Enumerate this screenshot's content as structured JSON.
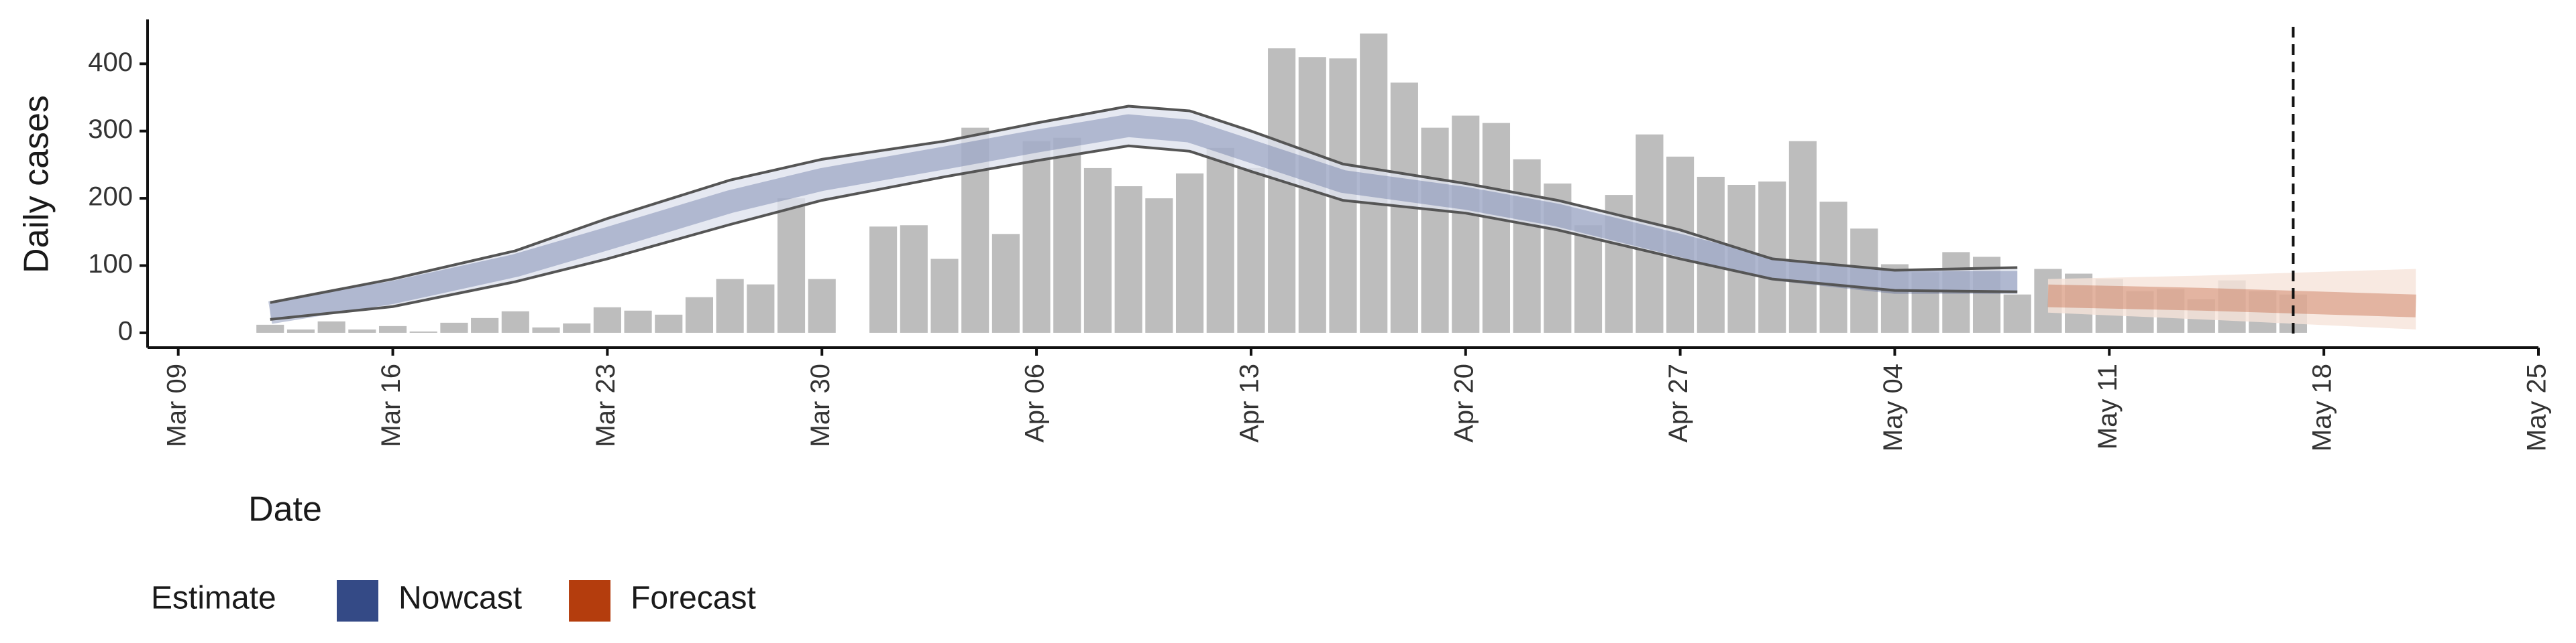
{
  "chart_data": {
    "type": "bar",
    "x_label": "Date",
    "y_label": "Daily cases",
    "x": [
      "Mar 12",
      "Mar 13",
      "Mar 14",
      "Mar 15",
      "Mar 16",
      "Mar 17",
      "Mar 18",
      "Mar 19",
      "Mar 20",
      "Mar 21",
      "Mar 22",
      "Mar 23",
      "Mar 24",
      "Mar 25",
      "Mar 26",
      "Mar 27",
      "Mar 28",
      "Mar 29",
      "Mar 30",
      "Mar 31",
      "Apr 01",
      "Apr 02",
      "Apr 03",
      "Apr 04",
      "Apr 05",
      "Apr 06",
      "Apr 07",
      "Apr 08",
      "Apr 09",
      "Apr 10",
      "Apr 11",
      "Apr 12",
      "Apr 13",
      "Apr 14",
      "Apr 15",
      "Apr 16",
      "Apr 17",
      "Apr 18",
      "Apr 19",
      "Apr 20",
      "Apr 21",
      "Apr 22",
      "Apr 23",
      "Apr 24",
      "Apr 25",
      "Apr 26",
      "Apr 27",
      "Apr 28",
      "Apr 29",
      "Apr 30",
      "May 01",
      "May 02",
      "May 03",
      "May 04",
      "May 05",
      "May 06",
      "May 07",
      "May 08",
      "May 09",
      "May 10",
      "May 11",
      "May 12",
      "May 13",
      "May 14",
      "May 15",
      "May 16",
      "May 17"
    ],
    "values": [
      12,
      5,
      17,
      5,
      10,
      2,
      15,
      22,
      32,
      8,
      14,
      38,
      33,
      27,
      53,
      80,
      72,
      200,
      80,
      0,
      158,
      160,
      110,
      305,
      147,
      285,
      290,
      245,
      218,
      200,
      237,
      275,
      245,
      423,
      410,
      408,
      445,
      372,
      305,
      323,
      312,
      258,
      222,
      160,
      205,
      295,
      262,
      232,
      220,
      225,
      285,
      195,
      155,
      102,
      90,
      120,
      113,
      57,
      95,
      88,
      80,
      62,
      65,
      50,
      78,
      62,
      57
    ],
    "color": "#bdbdbd",
    "estimates": [
      {
        "name": "Nowcast",
        "color": "#344a86",
        "band_color": "#dfe2ee",
        "bound_lines": true,
        "x": [
          "Mar 12",
          "Mar 16",
          "Mar 20",
          "Mar 23",
          "Mar 27",
          "Mar 30",
          "Apr 03",
          "Apr 06",
          "Apr 09",
          "Apr 11",
          "Apr 13",
          "Apr 16",
          "Apr 20",
          "Apr 23",
          "Apr 27",
          "Apr 30",
          "May 04",
          "May 08"
        ],
        "median": [
          30,
          60,
          100,
          140,
          195,
          228,
          260,
          285,
          308,
          300,
          270,
          225,
          200,
          175,
          130,
          95,
          75,
          75
        ],
        "lower": [
          20,
          39,
          76,
          110,
          161,
          197,
          232,
          256,
          278,
          270,
          240,
          197,
          178,
          153,
          110,
          80,
          63,
          61
        ],
        "upper": [
          45,
          80,
          122,
          170,
          227,
          258,
          285,
          312,
          337,
          330,
          300,
          251,
          222,
          197,
          153,
          110,
          93,
          97
        ]
      },
      {
        "name": "Forecast",
        "color": "#b43d0d",
        "band_color": "#f6e3da",
        "bound_lines": false,
        "x": [
          "May 09",
          "May 14",
          "May 21"
        ],
        "median": [
          55,
          50,
          40
        ],
        "lower": [
          30,
          20,
          5
        ],
        "upper": [
          80,
          85,
          95
        ]
      }
    ],
    "vline": "May 17",
    "legend_title": "Estimate",
    "legend_position": "bottom",
    "xlim": [
      "Mar 08",
      "May 25"
    ],
    "xticks": [
      "Mar 09",
      "Mar 16",
      "Mar 23",
      "Mar 30",
      "Apr 06",
      "Apr 13",
      "Apr 20",
      "Apr 27",
      "May 04",
      "May 11",
      "May 18",
      "May 25"
    ],
    "ylim": [
      -22,
      466
    ],
    "yticks": [
      0,
      100,
      200,
      300,
      400
    ],
    "grid": false
  }
}
